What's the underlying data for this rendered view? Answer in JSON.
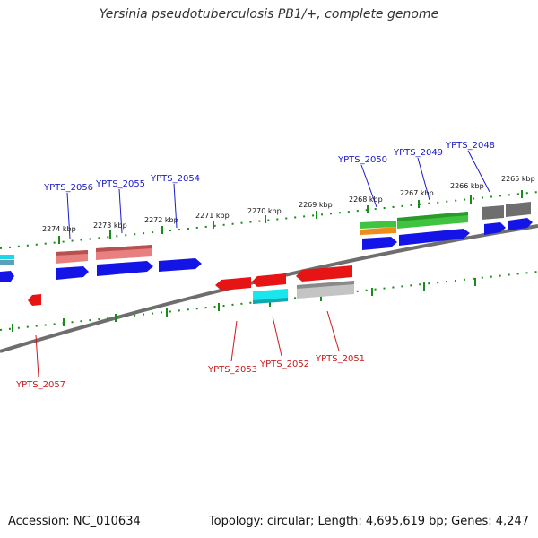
{
  "title": "Yersinia pseudotuberculosis PB1/+, complete genome",
  "footer": {
    "accession": "Accession: NC_010634",
    "summary": "Topology: circular; Length: 4,695,619 bp; Genes: 4,247"
  },
  "colors": {
    "backbone": "#7a7a7a",
    "tick": "#1a8a1a",
    "upper_label": "#1a1acc",
    "lower_label": "#cc1a1a",
    "blue": "#1414e6",
    "red": "#e61414",
    "salmon": "#e88080",
    "green": "#3fc43f",
    "orange": "#f08c1a",
    "cyan": "#1ae6ee",
    "gray": "#c0c0c0",
    "dark": "#707070"
  },
  "kbp_ticks": [
    "2274 kbp",
    "2273 kbp",
    "2272 kbp",
    "2271 kbp",
    "2270 kbp",
    "2269 kbp",
    "2268 kbp",
    "2267 kbp",
    "2266 kbp",
    "2265 kbp"
  ],
  "upper_genes": [
    "YPTS_2056",
    "YPTS_2055",
    "YPTS_2054",
    "YPTS_2050",
    "YPTS_2049",
    "YPTS_2048"
  ],
  "lower_genes": [
    "YPTS_2057",
    "YPTS_2053",
    "YPTS_2052",
    "YPTS_2051"
  ]
}
